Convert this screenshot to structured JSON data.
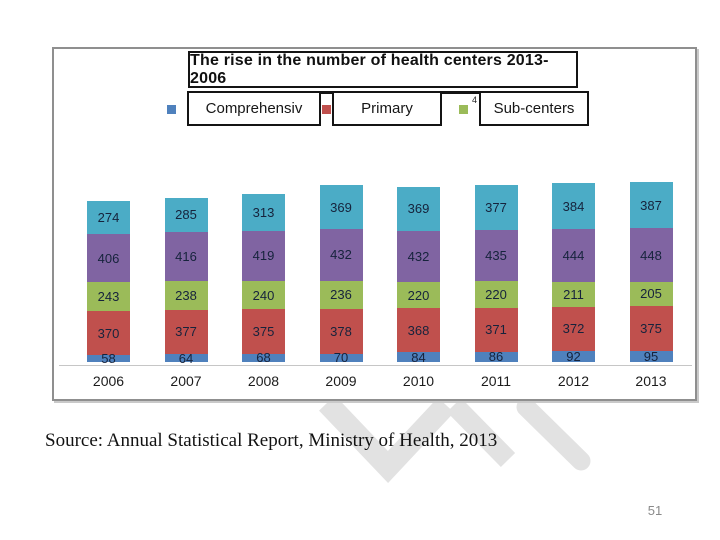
{
  "slide": {
    "source_text": "Source: Annual Statistical Report, Ministry of Health, 2013",
    "page_number": "51"
  },
  "chart": {
    "title": "The rise in the number of health centers 2013- 2006",
    "legend": [
      {
        "label": "Comprehensiv",
        "color": "#4F81BD"
      },
      {
        "label": "Primary",
        "color": "#C0504D"
      },
      {
        "label": "Sub-centers",
        "color": "#9BBB59"
      }
    ],
    "legend_artifact": "4"
  },
  "chart_data": {
    "type": "bar",
    "subtype": "stacked",
    "title": "The rise in the number of health centers 2013- 2006",
    "categories": [
      "2006",
      "2007",
      "2008",
      "2009",
      "2010",
      "2011",
      "2012",
      "2013"
    ],
    "series": [
      {
        "name": "Comprehensiv",
        "color": "#4F81BD",
        "values": [
          58,
          64,
          68,
          70,
          84,
          86,
          92,
          95
        ]
      },
      {
        "name": "Primary",
        "color": "#C0504D",
        "values": [
          370,
          377,
          375,
          378,
          368,
          371,
          372,
          375
        ]
      },
      {
        "name": "Sub-centers",
        "color": "#9BBB59",
        "values": [
          243,
          238,
          240,
          236,
          220,
          220,
          211,
          205
        ]
      },
      {
        "name": "",
        "color": "#8064A2",
        "values": [
          406,
          416,
          419,
          432,
          432,
          435,
          444,
          448
        ]
      },
      {
        "name": "",
        "color": "#4BACC6",
        "values": [
          274,
          285,
          313,
          369,
          369,
          377,
          384,
          387
        ]
      }
    ],
    "value_labels": true,
    "legend_position": "top",
    "xlabel": "",
    "ylabel": "",
    "gridlines": false,
    "baseline_color": "#c6c6c6"
  },
  "colors": {
    "frame_border": "#8f8f8f",
    "box_border": "#141414",
    "value_label": "#16233c",
    "watermark": "#e2e2e2",
    "page_number": "#8a8a8a"
  }
}
